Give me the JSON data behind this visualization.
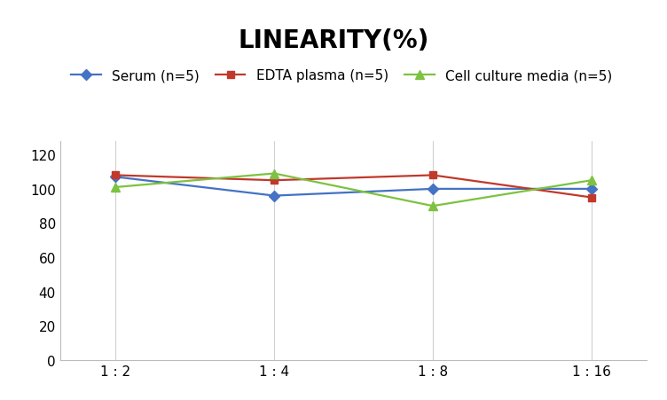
{
  "title": "LINEARITY(%)",
  "x_labels": [
    "1 : 2",
    "1 : 4",
    "1 : 8",
    "1 : 16"
  ],
  "x_positions": [
    0,
    1,
    2,
    3
  ],
  "series": [
    {
      "label": "Serum (n=5)",
      "values": [
        107,
        96,
        100,
        100
      ],
      "color": "#4472C4",
      "marker": "D",
      "marker_size": 6,
      "linewidth": 1.6
    },
    {
      "label": "EDTA plasma (n=5)",
      "values": [
        108,
        105,
        108,
        95
      ],
      "color": "#C0392B",
      "marker": "s",
      "marker_size": 6,
      "linewidth": 1.6
    },
    {
      "label": "Cell culture media (n=5)",
      "values": [
        101,
        109,
        90,
        105
      ],
      "color": "#7DC240",
      "marker": "^",
      "marker_size": 7,
      "linewidth": 1.6
    }
  ],
  "ylim": [
    0,
    128
  ],
  "yticks": [
    0,
    20,
    40,
    60,
    80,
    100,
    120
  ],
  "grid_color": "#D0D0D0",
  "background_color": "#FFFFFF",
  "title_fontsize": 20,
  "title_fontweight": "bold",
  "tick_fontsize": 11,
  "legend_fontsize": 11
}
